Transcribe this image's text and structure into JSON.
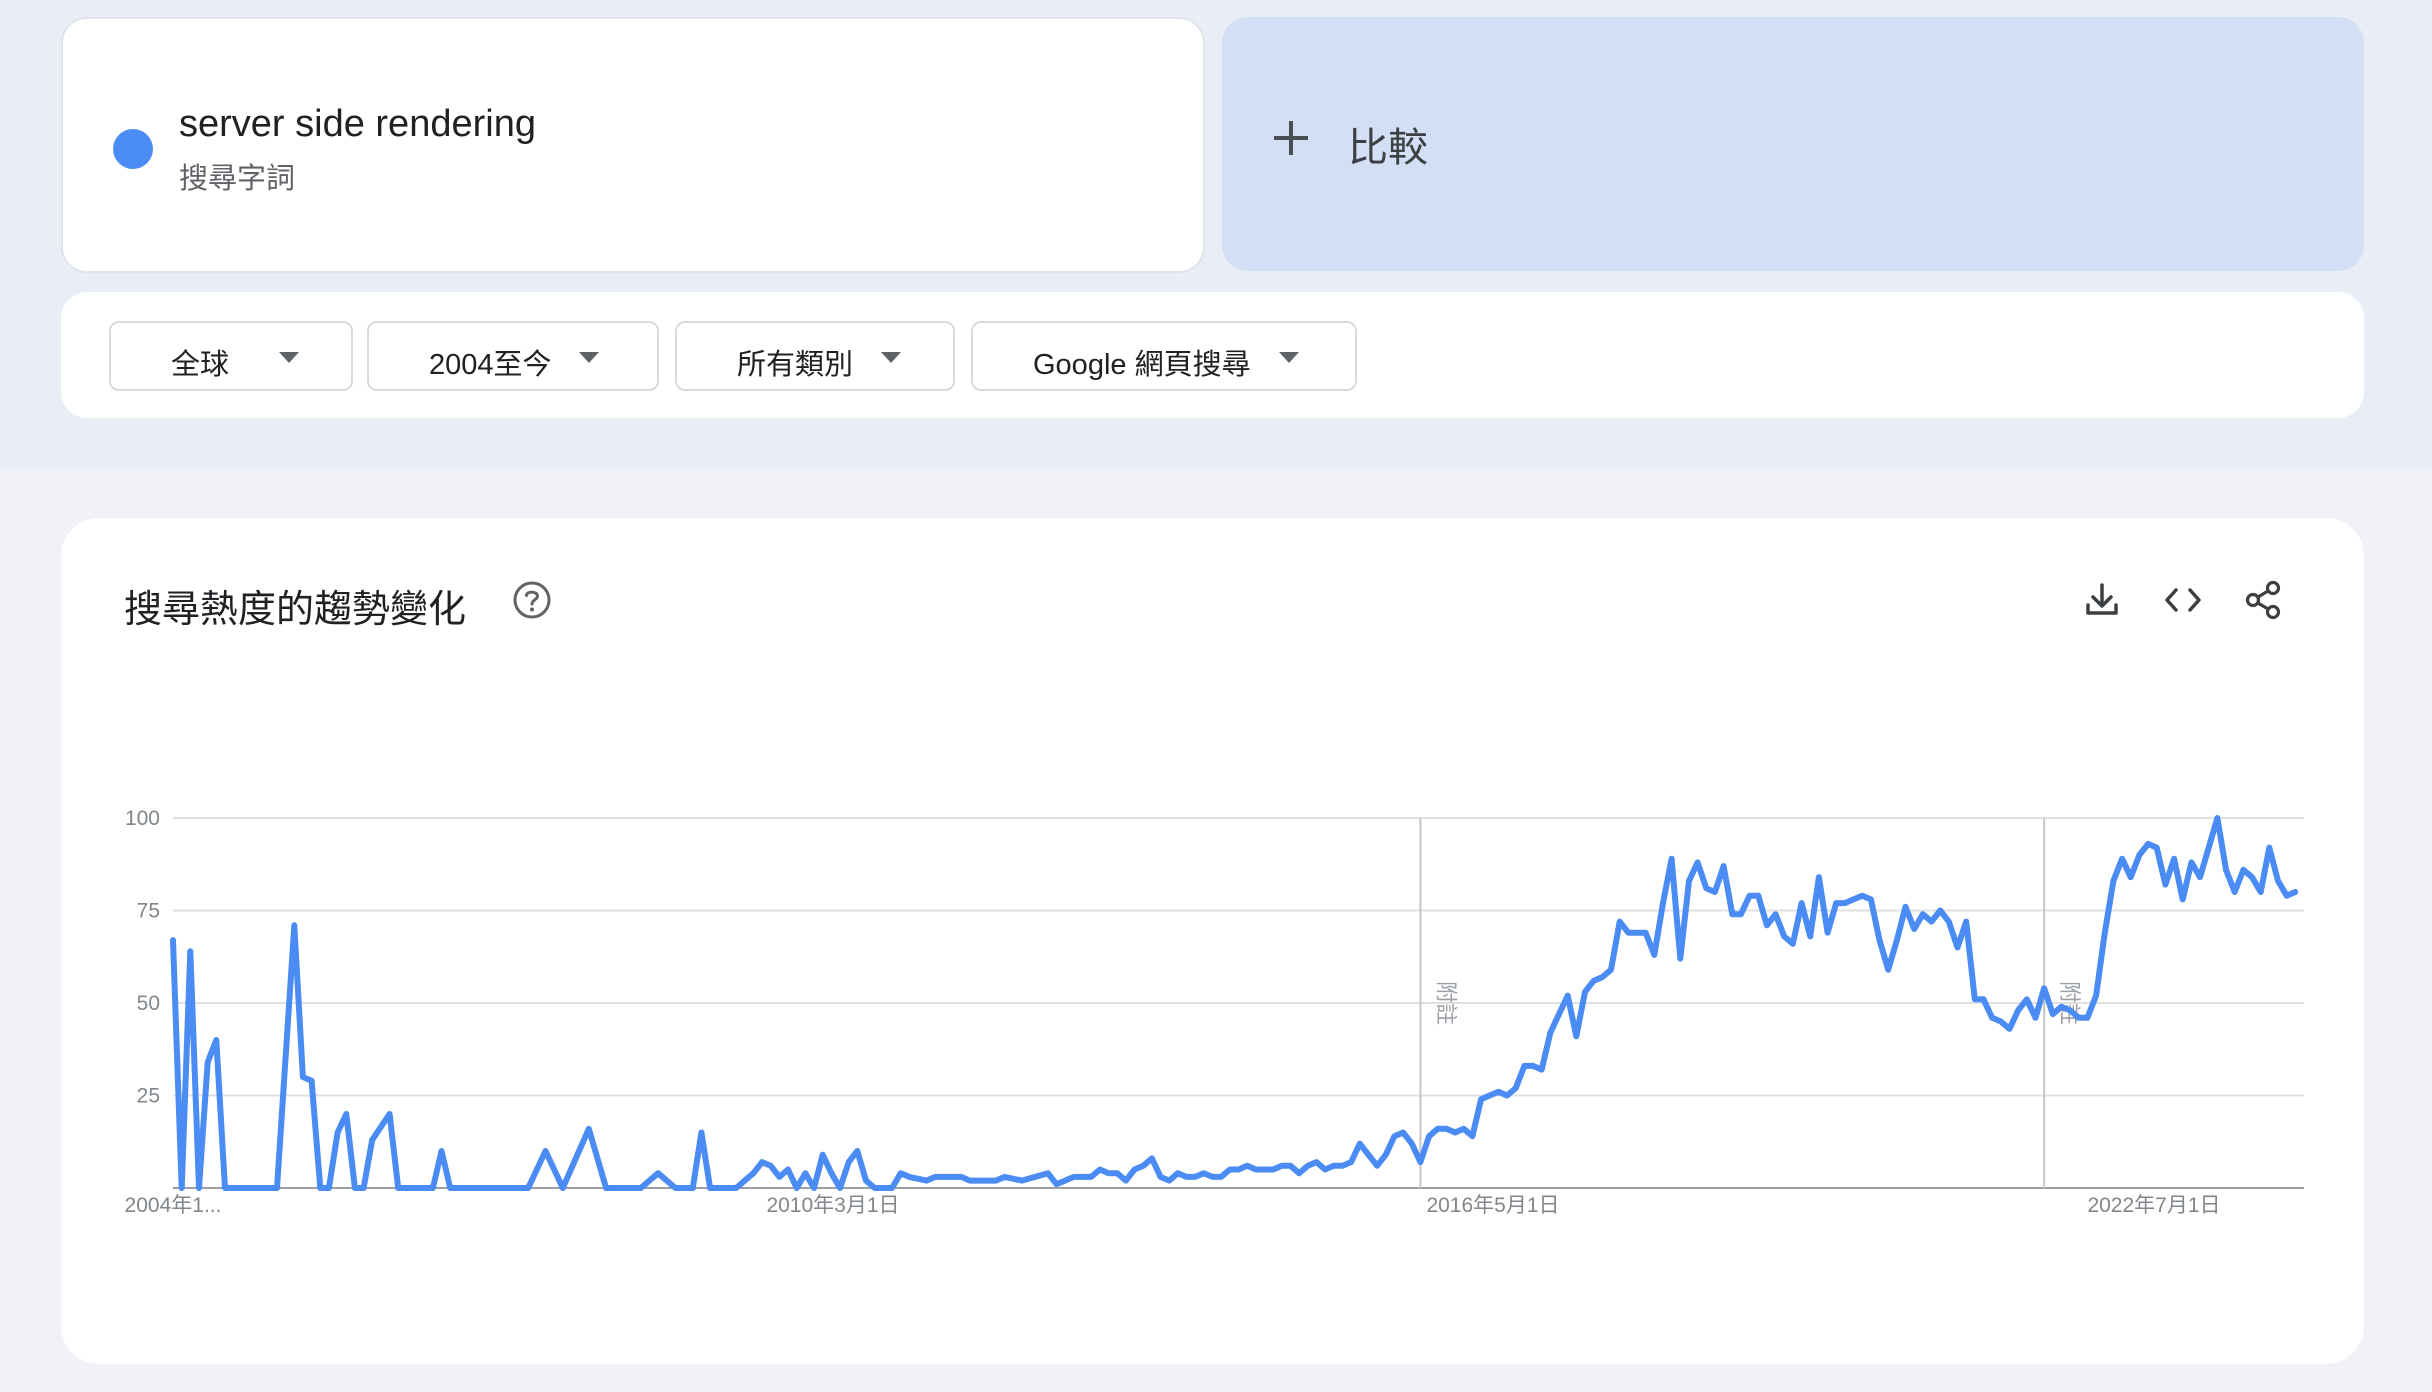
{
  "search_term": {
    "name": "server side rendering",
    "type_label": "搜尋字詞",
    "color": "#4b8cf4"
  },
  "compare": {
    "label": "比較",
    "icon": "plus-icon"
  },
  "filters": [
    {
      "label": "全球"
    },
    {
      "label": "2004至今"
    },
    {
      "label": "所有類別"
    },
    {
      "label": "Google 網頁搜尋"
    }
  ],
  "chart_section": {
    "title": "搜尋熱度的趨勢變化",
    "icons": [
      "help-icon",
      "download-icon",
      "embed-code-icon",
      "share-icon"
    ]
  },
  "chart_data": {
    "type": "line",
    "title": "",
    "xlabel": "",
    "ylabel": "",
    "ylim": [
      0,
      100
    ],
    "y_ticks": [
      "100",
      "75",
      "50",
      "25"
    ],
    "x_tick_labels": [
      "2004年1...",
      "2010年3月1日",
      "2016年5月1日",
      "2022年7月1日"
    ],
    "x_range": [
      "2004-01",
      "2024-07"
    ],
    "grid": true,
    "notes": [
      {
        "x": "2016-01",
        "label": "附註"
      },
      {
        "x": "2022-01",
        "label": "附註"
      }
    ],
    "series": [
      {
        "name": "server side rendering",
        "color": "#4b8cf4",
        "x": [
          "2004-01",
          "2004-02",
          "2004-03",
          "2004-04",
          "2004-05",
          "2004-06",
          "2004-07",
          "2004-08",
          "2004-09",
          "2004-11",
          "2005-01",
          "2005-03",
          "2005-04",
          "2005-05",
          "2005-06",
          "2005-07",
          "2005-08",
          "2005-09",
          "2005-10",
          "2005-11",
          "2005-12",
          "2006-02",
          "2006-03",
          "2006-05",
          "2006-07",
          "2006-08",
          "2006-09",
          "2006-11",
          "2007-02",
          "2007-04",
          "2007-06",
          "2007-08",
          "2007-10",
          "2008-01",
          "2008-03",
          "2008-05",
          "2008-06",
          "2008-07",
          "2008-09",
          "2008-11",
          "2009-01",
          "2009-02",
          "2009-03",
          "2009-05",
          "2009-06",
          "2009-08",
          "2009-09",
          "2009-10",
          "2009-11",
          "2009-12",
          "2010-01",
          "2010-02",
          "2010-03",
          "2010-04",
          "2010-05",
          "2010-06",
          "2010-07",
          "2010-08",
          "2010-09",
          "2010-10",
          "2010-11",
          "2010-12",
          "2011-01",
          "2011-02",
          "2011-04",
          "2011-05",
          "2011-06",
          "2011-07",
          "2011-08",
          "2011-09",
          "2011-12",
          "2012-01",
          "2012-03",
          "2012-06",
          "2012-07",
          "2012-09",
          "2012-10",
          "2012-11",
          "2012-12",
          "2013-01",
          "2013-02",
          "2013-03",
          "2013-04",
          "2013-05",
          "2013-06",
          "2013-07",
          "2013-08",
          "2013-09",
          "2013-10",
          "2013-11",
          "2013-12",
          "2014-01",
          "2014-02",
          "2014-03",
          "2014-04",
          "2014-05",
          "2014-06",
          "2014-07",
          "2014-08",
          "2014-09",
          "2014-10",
          "2014-11",
          "2014-12",
          "2015-01",
          "2015-02",
          "2015-03",
          "2015-04",
          "2015-05",
          "2015-06",
          "2015-07",
          "2015-08",
          "2015-09",
          "2015-10",
          "2015-11",
          "2015-12",
          "2016-01",
          "2016-02",
          "2016-03",
          "2016-04",
          "2016-05",
          "2016-06",
          "2016-07",
          "2016-08",
          "2016-09",
          "2016-10",
          "2016-11",
          "2016-12",
          "2017-01",
          "2017-02",
          "2017-03",
          "2017-04",
          "2017-05",
          "2017-06",
          "2017-07",
          "2017-08",
          "2017-09",
          "2017-10",
          "2017-11",
          "2017-12",
          "2018-01",
          "2018-02",
          "2018-03",
          "2018-04",
          "2018-05",
          "2018-06",
          "2018-07",
          "2018-08",
          "2018-09",
          "2018-10",
          "2018-11",
          "2018-12",
          "2019-01",
          "2019-02",
          "2019-03",
          "2019-04",
          "2019-05",
          "2019-06",
          "2019-07",
          "2019-08",
          "2019-09",
          "2019-10",
          "2019-11",
          "2019-12",
          "2020-01",
          "2020-02",
          "2020-03",
          "2020-04",
          "2020-05",
          "2020-06",
          "2020-07",
          "2020-08",
          "2020-09",
          "2020-10",
          "2020-11",
          "2020-12",
          "2021-01",
          "2021-02",
          "2021-03",
          "2021-04",
          "2021-05",
          "2021-06",
          "2021-07",
          "2021-08",
          "2021-09",
          "2021-10",
          "2021-11",
          "2021-12",
          "2022-01",
          "2022-02",
          "2022-03",
          "2022-04",
          "2022-05",
          "2022-06",
          "2022-07",
          "2022-08",
          "2022-09",
          "2022-10",
          "2022-11",
          "2022-12",
          "2023-01",
          "2023-02",
          "2023-03",
          "2023-04",
          "2023-05",
          "2023-06",
          "2023-07",
          "2023-08",
          "2023-09",
          "2023-10",
          "2023-11",
          "2023-12",
          "2024-01",
          "2024-02",
          "2024-03",
          "2024-04",
          "2024-05",
          "2024-06"
        ],
        "values": [
          67,
          0,
          64,
          0,
          34,
          40,
          0,
          0,
          0,
          0,
          0,
          71,
          30,
          29,
          0,
          0,
          15,
          20,
          0,
          0,
          13,
          20,
          0,
          0,
          0,
          10,
          0,
          0,
          0,
          0,
          0,
          10,
          0,
          16,
          0,
          0,
          0,
          0,
          4,
          0,
          0,
          15,
          0,
          0,
          0,
          4,
          7,
          6,
          3,
          5,
          0,
          4,
          0,
          9,
          4,
          0,
          7,
          10,
          2,
          0,
          0,
          0,
          4,
          3,
          2,
          3,
          3,
          3,
          3,
          2,
          2,
          3,
          2,
          4,
          1,
          3,
          3,
          3,
          5,
          4,
          4,
          2,
          5,
          6,
          8,
          3,
          2,
          4,
          3,
          3,
          4,
          3,
          3,
          5,
          5,
          6,
          5,
          5,
          5,
          6,
          6,
          4,
          6,
          7,
          5,
          6,
          6,
          7,
          12,
          9,
          6,
          9,
          14,
          15,
          12,
          7,
          14,
          16,
          16,
          15,
          16,
          14,
          24,
          25,
          26,
          25,
          27,
          33,
          33,
          32,
          42,
          47,
          52,
          41,
          53,
          56,
          57,
          59,
          72,
          69,
          69,
          69,
          63,
          77,
          89,
          62,
          83,
          88,
          81,
          80,
          87,
          74,
          74,
          79,
          79,
          71,
          74,
          68,
          66,
          77,
          68,
          84,
          69,
          77,
          77,
          78,
          79,
          78,
          67,
          59,
          67,
          76,
          70,
          74,
          72,
          75,
          72,
          65,
          72,
          51,
          51,
          46,
          45,
          43,
          48,
          51,
          46,
          54,
          47,
          49,
          48,
          46,
          46,
          52,
          69,
          83,
          89,
          84,
          90,
          93,
          92,
          82,
          89,
          78,
          88,
          84,
          92,
          100,
          86,
          80,
          86,
          84,
          80,
          92,
          83,
          79,
          80
        ]
      }
    ]
  }
}
